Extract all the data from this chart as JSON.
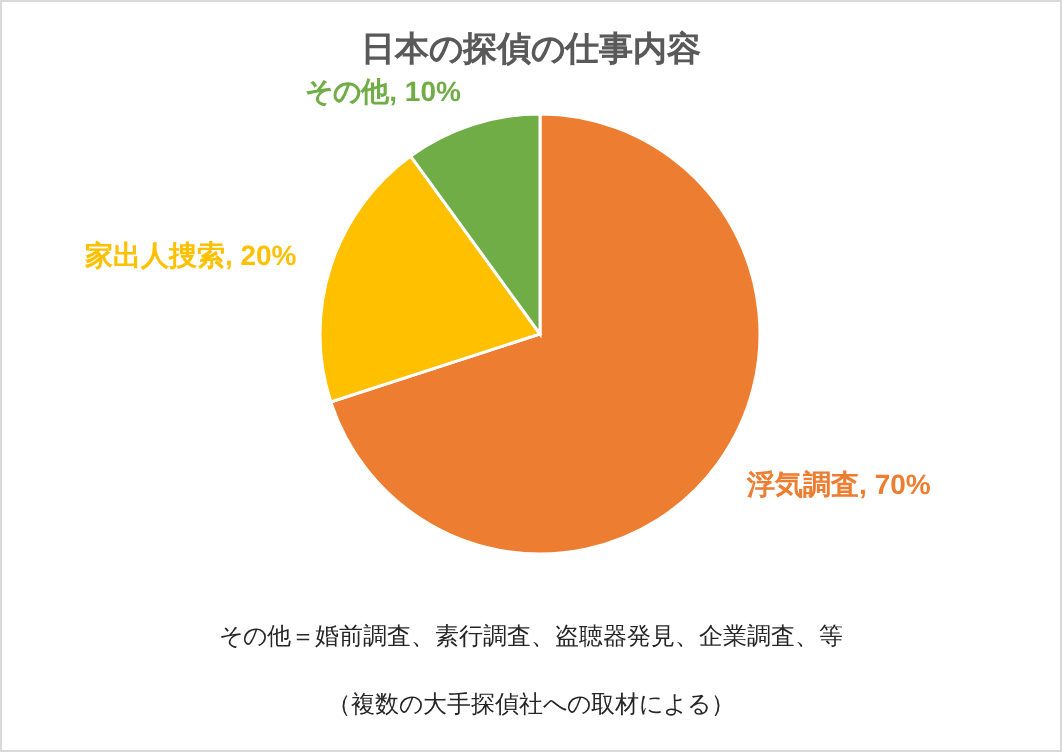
{
  "chart_data": {
    "type": "pie",
    "title": "日本の探偵の仕事内容",
    "categories": [
      "浮気調査",
      "家出人捜索",
      "その他"
    ],
    "values": [
      70,
      20,
      10
    ],
    "colors": [
      "#ed7d31",
      "#ffc000",
      "#70ad47"
    ],
    "value_labels": [
      ", 70%",
      ", 20%",
      ", 10%"
    ],
    "annotations": [
      "その他＝婚前調査、素行調査、盗聴器発見、企業調査、等",
      "（複数の大手探偵社への取材による）"
    ]
  }
}
